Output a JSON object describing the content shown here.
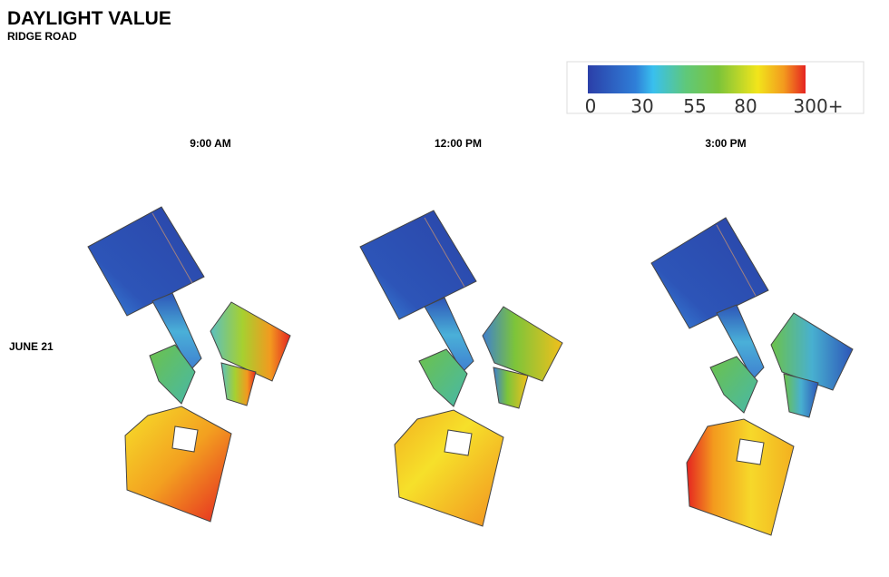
{
  "header": {
    "title": "DAYLIGHT VALUE",
    "subtitle": "RIDGE ROAD"
  },
  "legend": {
    "labels": [
      "0",
      "30",
      "55",
      "80",
      "300+"
    ]
  },
  "columns": [
    "9:00 AM",
    "12:00 PM",
    "3:00 PM"
  ],
  "rows": [
    "JUNE 21"
  ]
}
